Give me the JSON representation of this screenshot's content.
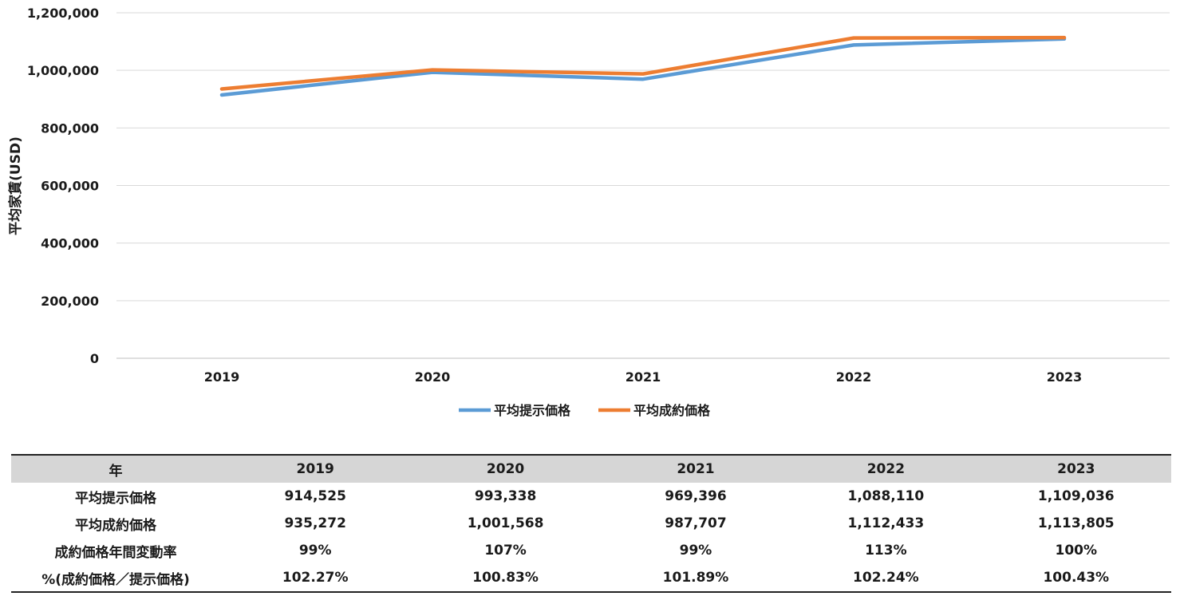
{
  "chart_data": {
    "type": "line",
    "categories": [
      "2019",
      "2020",
      "2021",
      "2022",
      "2023"
    ],
    "series": [
      {
        "name": "平均提示価格",
        "color": "#5b9bd5",
        "values": [
          914525,
          993338,
          969396,
          1088110,
          1109036
        ]
      },
      {
        "name": "平均成約価格",
        "color": "#ed7d31",
        "values": [
          935272,
          1001568,
          987707,
          1112433,
          1113805
        ]
      }
    ],
    "ylabel": "平均家賃(USD)",
    "ylim": [
      0,
      1200000
    ],
    "yticks": [
      0,
      200000,
      400000,
      600000,
      800000,
      1000000,
      1200000
    ],
    "ytick_labels": [
      "0",
      "200,000",
      "400,000",
      "600,000",
      "800,000",
      "1,000,000",
      "1,200,000"
    ],
    "grid": true,
    "legend_position": "bottom"
  },
  "table": {
    "header": [
      "年",
      "2019",
      "2020",
      "2021",
      "2022",
      "2023"
    ],
    "rows": [
      [
        "平均提示価格",
        "914,525",
        "993,338",
        "969,396",
        "1,088,110",
        "1,109,036"
      ],
      [
        "平均成約価格",
        "935,272",
        "1,001,568",
        "987,707",
        "1,112,433",
        "1,113,805"
      ],
      [
        "成約価格年間変動率",
        "99%",
        "107%",
        "99%",
        "113%",
        "100%"
      ],
      [
        "%(成約価格／提示価格)",
        "102.27%",
        "100.83%",
        "101.89%",
        "102.24%",
        "100.43%"
      ]
    ]
  }
}
